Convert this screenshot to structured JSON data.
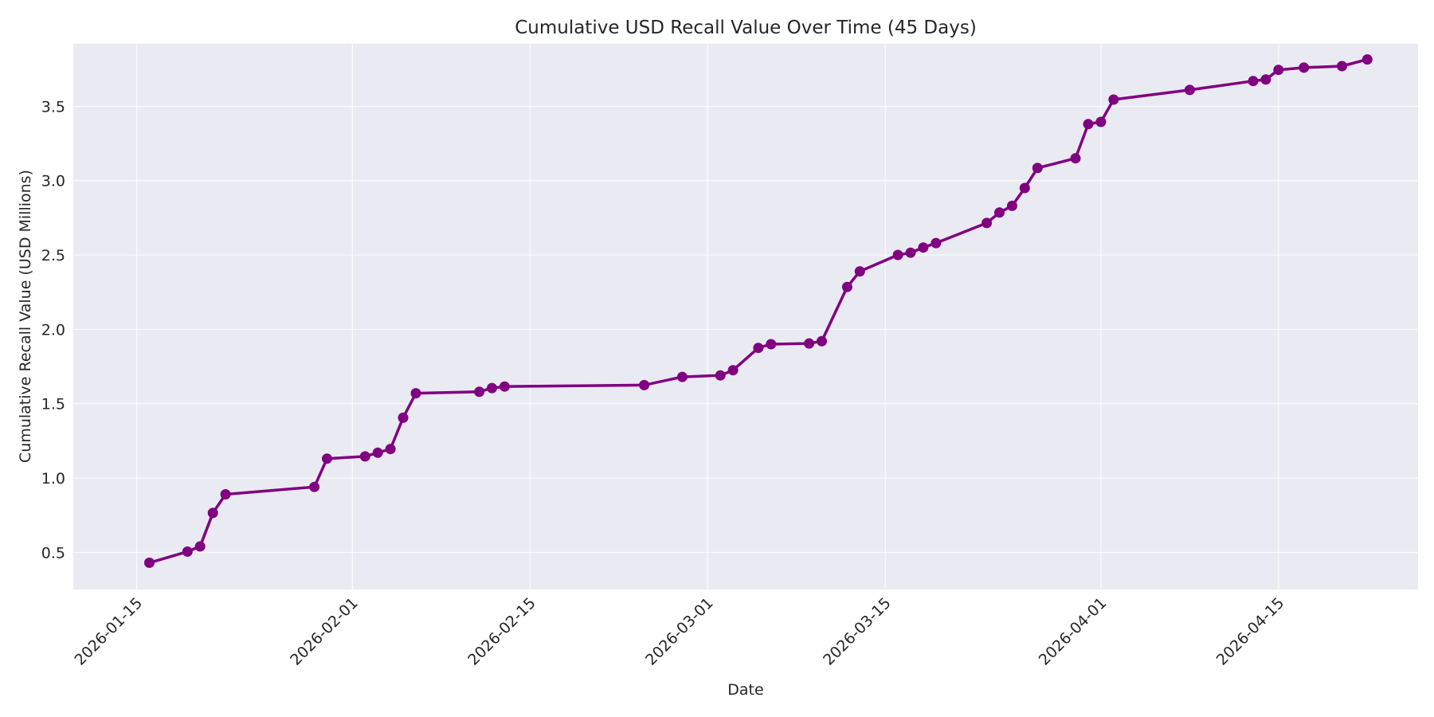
{
  "chart_data": {
    "type": "line",
    "title": "Cumulative USD Recall Value Over Time (45 Days)",
    "xlabel": "Date",
    "ylabel": "Cumulative Recall Value (USD Millions)",
    "xlim": [
      "2026-01-10",
      "2026-04-26"
    ],
    "ylim": [
      0.25,
      3.92
    ],
    "x_ticks": [
      "2026-01-15",
      "2026-02-01",
      "2026-02-15",
      "2026-03-01",
      "2026-03-15",
      "2026-04-01",
      "2026-04-15"
    ],
    "y_ticks": [
      0.5,
      1.0,
      1.5,
      2.0,
      2.5,
      3.0,
      3.5
    ],
    "y_tick_labels": [
      "0.5",
      "1.0",
      "1.5",
      "2.0",
      "2.5",
      "3.0",
      "3.5"
    ],
    "grid": true,
    "colors": {
      "line": "#800080",
      "plot_background": "#eaeaf2",
      "grid": "#ffffff",
      "text": "#262626"
    },
    "series": [
      {
        "x": [
          "2026-01-16",
          "2026-01-19",
          "2026-01-20",
          "2026-01-21",
          "2026-01-22",
          "2026-01-29",
          "2026-01-30",
          "2026-02-02",
          "2026-02-03",
          "2026-02-04",
          "2026-02-05",
          "2026-02-06",
          "2026-02-11",
          "2026-02-12",
          "2026-02-13",
          "2026-02-24",
          "2026-02-27",
          "2026-03-02",
          "2026-03-03",
          "2026-03-05",
          "2026-03-06",
          "2026-03-09",
          "2026-03-10",
          "2026-03-12",
          "2026-03-13",
          "2026-03-16",
          "2026-03-17",
          "2026-03-18",
          "2026-03-19",
          "2026-03-23",
          "2026-03-24",
          "2026-03-25",
          "2026-03-26",
          "2026-03-27",
          "2026-03-30",
          "2026-03-31",
          "2026-04-01",
          "2026-04-02",
          "2026-04-08",
          "2026-04-13",
          "2026-04-14",
          "2026-04-15",
          "2026-04-17",
          "2026-04-20",
          "2026-04-22"
        ],
        "values": [
          0.43,
          0.505,
          0.54,
          0.765,
          0.89,
          0.94,
          1.13,
          1.145,
          1.17,
          1.195,
          1.405,
          1.57,
          1.58,
          1.605,
          1.615,
          1.625,
          1.68,
          1.69,
          1.725,
          1.875,
          1.9,
          1.905,
          1.92,
          2.285,
          2.39,
          2.5,
          2.515,
          2.55,
          2.58,
          2.715,
          2.785,
          2.83,
          2.95,
          3.085,
          3.15,
          3.38,
          3.395,
          3.545,
          3.61,
          3.67,
          3.68,
          3.745,
          3.76,
          3.77,
          3.815
        ]
      }
    ]
  }
}
